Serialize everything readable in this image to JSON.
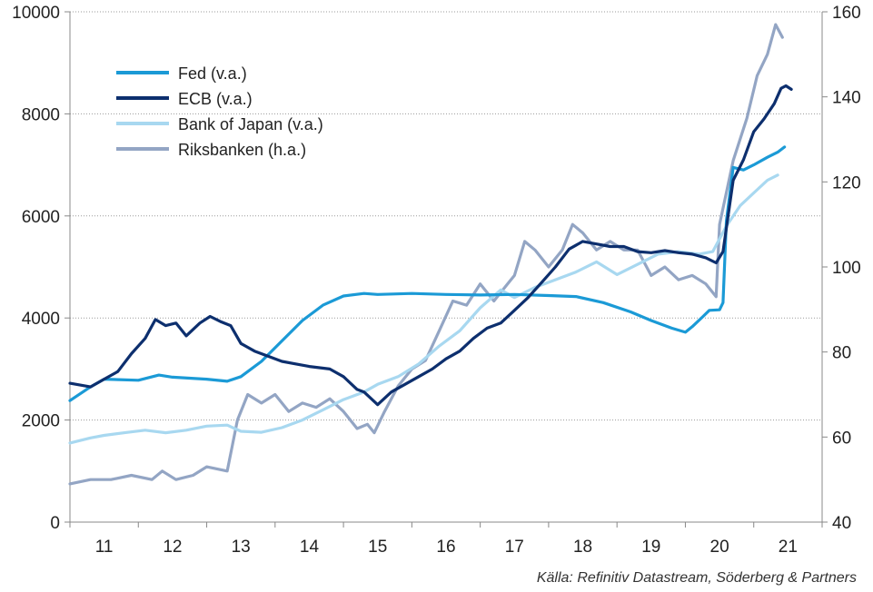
{
  "chart_data": {
    "type": "line",
    "x_ticks": [
      "11",
      "12",
      "13",
      "14",
      "15",
      "16",
      "17",
      "18",
      "19",
      "20",
      "21"
    ],
    "y_left": {
      "range": [
        0,
        10000
      ],
      "ticks": [
        "0",
        "2000",
        "4000",
        "6000",
        "8000",
        "10000"
      ]
    },
    "y_right": {
      "range": [
        40,
        160
      ],
      "ticks": [
        "40",
        "60",
        "80",
        "100",
        "120",
        "140",
        "160"
      ]
    },
    "grid": "horizontal dotted",
    "legend_position": "top-left",
    "series": [
      {
        "name": "Fed (v.a.)",
        "axis": "left",
        "color": "#1b9ad6",
        "points": [
          [
            2010.5,
            2380
          ],
          [
            2010.8,
            2650
          ],
          [
            2011.0,
            2800
          ],
          [
            2011.5,
            2780
          ],
          [
            2011.8,
            2880
          ],
          [
            2012.0,
            2840
          ],
          [
            2012.5,
            2800
          ],
          [
            2012.8,
            2760
          ],
          [
            2013.0,
            2850
          ],
          [
            2013.3,
            3150
          ],
          [
            2013.6,
            3550
          ],
          [
            2013.9,
            3950
          ],
          [
            2014.2,
            4250
          ],
          [
            2014.5,
            4430
          ],
          [
            2014.8,
            4480
          ],
          [
            2015.0,
            4460
          ],
          [
            2015.5,
            4480
          ],
          [
            2016.0,
            4460
          ],
          [
            2016.5,
            4450
          ],
          [
            2017.0,
            4460
          ],
          [
            2017.5,
            4440
          ],
          [
            2017.9,
            4420
          ],
          [
            2018.3,
            4300
          ],
          [
            2018.7,
            4120
          ],
          [
            2019.0,
            3950
          ],
          [
            2019.3,
            3800
          ],
          [
            2019.5,
            3720
          ],
          [
            2019.6,
            3830
          ],
          [
            2019.75,
            4020
          ],
          [
            2019.85,
            4150
          ],
          [
            2020.0,
            4160
          ],
          [
            2020.05,
            4300
          ],
          [
            2020.1,
            5900
          ],
          [
            2020.2,
            6950
          ],
          [
            2020.35,
            6900
          ],
          [
            2020.5,
            7000
          ],
          [
            2020.7,
            7150
          ],
          [
            2020.85,
            7250
          ],
          [
            2020.95,
            7350
          ]
        ]
      },
      {
        "name": "ECB (v.a.)",
        "axis": "left",
        "color": "#0d2f6e",
        "points": [
          [
            2010.5,
            2720
          ],
          [
            2010.8,
            2650
          ],
          [
            2011.0,
            2800
          ],
          [
            2011.2,
            2950
          ],
          [
            2011.4,
            3300
          ],
          [
            2011.6,
            3600
          ],
          [
            2011.75,
            3970
          ],
          [
            2011.9,
            3850
          ],
          [
            2012.05,
            3900
          ],
          [
            2012.2,
            3650
          ],
          [
            2012.4,
            3900
          ],
          [
            2012.55,
            4030
          ],
          [
            2012.7,
            3930
          ],
          [
            2012.85,
            3850
          ],
          [
            2013.0,
            3500
          ],
          [
            2013.2,
            3350
          ],
          [
            2013.4,
            3250
          ],
          [
            2013.6,
            3150
          ],
          [
            2013.8,
            3100
          ],
          [
            2014.0,
            3050
          ],
          [
            2014.3,
            3000
          ],
          [
            2014.5,
            2850
          ],
          [
            2014.7,
            2600
          ],
          [
            2014.8,
            2550
          ],
          [
            2015.0,
            2300
          ],
          [
            2015.2,
            2550
          ],
          [
            2015.4,
            2700
          ],
          [
            2015.6,
            2850
          ],
          [
            2015.8,
            3000
          ],
          [
            2016.0,
            3200
          ],
          [
            2016.2,
            3350
          ],
          [
            2016.4,
            3600
          ],
          [
            2016.6,
            3800
          ],
          [
            2016.8,
            3900
          ],
          [
            2017.0,
            4150
          ],
          [
            2017.2,
            4400
          ],
          [
            2017.4,
            4700
          ],
          [
            2017.6,
            5000
          ],
          [
            2017.8,
            5350
          ],
          [
            2018.0,
            5500
          ],
          [
            2018.2,
            5450
          ],
          [
            2018.4,
            5400
          ],
          [
            2018.6,
            5400
          ],
          [
            2018.8,
            5300
          ],
          [
            2019.0,
            5280
          ],
          [
            2019.2,
            5320
          ],
          [
            2019.4,
            5280
          ],
          [
            2019.6,
            5250
          ],
          [
            2019.8,
            5180
          ],
          [
            2019.95,
            5080
          ],
          [
            2020.05,
            5300
          ],
          [
            2020.2,
            6700
          ],
          [
            2020.35,
            7100
          ],
          [
            2020.5,
            7650
          ],
          [
            2020.65,
            7900
          ],
          [
            2020.8,
            8200
          ],
          [
            2020.9,
            8500
          ],
          [
            2020.97,
            8550
          ],
          [
            2021.05,
            8480
          ]
        ]
      },
      {
        "name": "Bank of Japan (v.a.)",
        "axis": "left",
        "color": "#a8d8f0",
        "points": [
          [
            2010.5,
            1550
          ],
          [
            2010.8,
            1650
          ],
          [
            2011.0,
            1700
          ],
          [
            2011.3,
            1750
          ],
          [
            2011.6,
            1800
          ],
          [
            2011.9,
            1750
          ],
          [
            2012.2,
            1800
          ],
          [
            2012.5,
            1880
          ],
          [
            2012.8,
            1900
          ],
          [
            2013.0,
            1780
          ],
          [
            2013.3,
            1760
          ],
          [
            2013.6,
            1850
          ],
          [
            2013.9,
            2000
          ],
          [
            2014.2,
            2200
          ],
          [
            2014.5,
            2400
          ],
          [
            2014.8,
            2550
          ],
          [
            2015.0,
            2700
          ],
          [
            2015.3,
            2850
          ],
          [
            2015.6,
            3100
          ],
          [
            2015.9,
            3450
          ],
          [
            2016.2,
            3750
          ],
          [
            2016.5,
            4200
          ],
          [
            2016.8,
            4550
          ],
          [
            2017.0,
            4400
          ],
          [
            2017.3,
            4600
          ],
          [
            2017.6,
            4750
          ],
          [
            2017.9,
            4900
          ],
          [
            2018.2,
            5100
          ],
          [
            2018.5,
            4850
          ],
          [
            2018.8,
            5050
          ],
          [
            2019.1,
            5250
          ],
          [
            2019.4,
            5300
          ],
          [
            2019.7,
            5250
          ],
          [
            2019.9,
            5300
          ],
          [
            2020.1,
            5800
          ],
          [
            2020.3,
            6200
          ],
          [
            2020.5,
            6450
          ],
          [
            2020.7,
            6700
          ],
          [
            2020.85,
            6800
          ]
        ]
      },
      {
        "name": "Riksbanken (h.a.)",
        "axis": "right",
        "color": "#93a5c4",
        "points": [
          [
            2010.5,
            49
          ],
          [
            2010.8,
            50
          ],
          [
            2011.1,
            50
          ],
          [
            2011.4,
            51
          ],
          [
            2011.7,
            50
          ],
          [
            2011.85,
            52
          ],
          [
            2012.05,
            50
          ],
          [
            2012.3,
            51
          ],
          [
            2012.5,
            53
          ],
          [
            2012.8,
            52
          ],
          [
            2012.95,
            64
          ],
          [
            2013.1,
            70
          ],
          [
            2013.3,
            68
          ],
          [
            2013.5,
            70
          ],
          [
            2013.7,
            66
          ],
          [
            2013.9,
            68
          ],
          [
            2014.1,
            67
          ],
          [
            2014.3,
            69
          ],
          [
            2014.5,
            66
          ],
          [
            2014.7,
            62
          ],
          [
            2014.85,
            63
          ],
          [
            2014.95,
            61
          ],
          [
            2015.1,
            66
          ],
          [
            2015.3,
            72
          ],
          [
            2015.5,
            76
          ],
          [
            2015.7,
            78
          ],
          [
            2015.9,
            85
          ],
          [
            2016.1,
            92
          ],
          [
            2016.3,
            91
          ],
          [
            2016.5,
            96
          ],
          [
            2016.7,
            92
          ],
          [
            2016.9,
            96
          ],
          [
            2017.0,
            98
          ],
          [
            2017.15,
            106
          ],
          [
            2017.3,
            104
          ],
          [
            2017.5,
            100
          ],
          [
            2017.7,
            104
          ],
          [
            2017.85,
            110
          ],
          [
            2018.0,
            108
          ],
          [
            2018.2,
            104
          ],
          [
            2018.4,
            106
          ],
          [
            2018.6,
            104
          ],
          [
            2018.8,
            104
          ],
          [
            2019.0,
            98
          ],
          [
            2019.2,
            100
          ],
          [
            2019.4,
            97
          ],
          [
            2019.6,
            98
          ],
          [
            2019.8,
            96
          ],
          [
            2019.95,
            93
          ],
          [
            2020.0,
            110
          ],
          [
            2020.2,
            125
          ],
          [
            2020.4,
            135
          ],
          [
            2020.55,
            145
          ],
          [
            2020.7,
            150
          ],
          [
            2020.82,
            157
          ],
          [
            2020.92,
            154
          ]
        ]
      }
    ]
  },
  "source_text": "Källa: Refinitiv Datastream, Söderberg & Partners"
}
